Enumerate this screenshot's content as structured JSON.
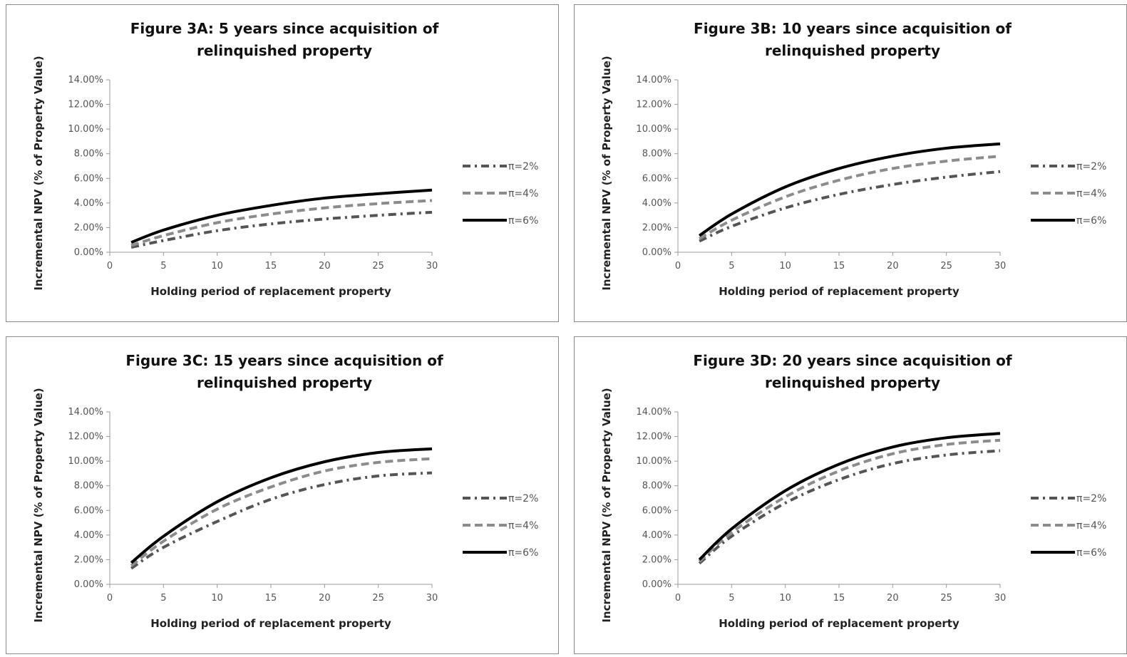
{
  "chart_data": [
    {
      "type": "line",
      "title_line1": "Figure 3A: 5 years since acquisition of",
      "title_line2": "relinquished property",
      "xlabel": "Holding period of replacement property",
      "ylabel": "Incremental NPV (% of Property Value)",
      "xlim": [
        0,
        30
      ],
      "ylim": [
        0,
        14
      ],
      "x_ticks": [
        "0",
        "5",
        "10",
        "15",
        "20",
        "25",
        "30"
      ],
      "y_ticks": [
        "0.00%",
        "2.00%",
        "4.00%",
        "6.00%",
        "8.00%",
        "10.00%",
        "12.00%",
        "14.00%"
      ],
      "legend_position": "right",
      "x": [
        2,
        5,
        10,
        15,
        20,
        25,
        30
      ],
      "series": [
        {
          "name": "π=2%",
          "style": "dashdot",
          "color": "#555555",
          "values": [
            0.4,
            0.95,
            1.75,
            2.3,
            2.7,
            3.0,
            3.25
          ]
        },
        {
          "name": "π=4%",
          "style": "dash",
          "color": "#8c8c8c",
          "values": [
            0.55,
            1.35,
            2.4,
            3.1,
            3.6,
            3.95,
            4.2
          ]
        },
        {
          "name": "π=6%",
          "style": "solid",
          "color": "#000000",
          "values": [
            0.8,
            1.8,
            3.0,
            3.8,
            4.4,
            4.75,
            5.05
          ]
        }
      ]
    },
    {
      "type": "line",
      "title_line1": "Figure 3B: 10 years since acquisition of",
      "title_line2": "relinquished property",
      "xlabel": "Holding period of replacement property",
      "ylabel": "Incremental NPV (% of Property Value)",
      "xlim": [
        0,
        30
      ],
      "ylim": [
        0,
        14
      ],
      "x_ticks": [
        "0",
        "5",
        "10",
        "15",
        "20",
        "25",
        "30"
      ],
      "y_ticks": [
        "0.00%",
        "2.00%",
        "4.00%",
        "6.00%",
        "8.00%",
        "10.00%",
        "12.00%",
        "14.00%"
      ],
      "legend_position": "right",
      "x": [
        2,
        5,
        10,
        15,
        20,
        25,
        30
      ],
      "series": [
        {
          "name": "π=2%",
          "style": "dashdot",
          "color": "#555555",
          "values": [
            0.9,
            2.1,
            3.6,
            4.7,
            5.5,
            6.1,
            6.55
          ]
        },
        {
          "name": "π=4%",
          "style": "dash",
          "color": "#8c8c8c",
          "values": [
            1.1,
            2.6,
            4.5,
            5.85,
            6.8,
            7.4,
            7.8
          ]
        },
        {
          "name": "π=6%",
          "style": "solid",
          "color": "#000000",
          "values": [
            1.35,
            3.1,
            5.3,
            6.8,
            7.8,
            8.45,
            8.8
          ]
        }
      ]
    },
    {
      "type": "line",
      "title_line1": "Figure 3C: 15 years since acquisition of",
      "title_line2": "relinquished property",
      "xlabel": "Holding period of replacement property",
      "ylabel": "Incremental NPV (% of Property Value)",
      "xlim": [
        0,
        30
      ],
      "ylim": [
        0,
        14
      ],
      "x_ticks": [
        "0",
        "5",
        "10",
        "15",
        "20",
        "25",
        "30"
      ],
      "y_ticks": [
        "0.00%",
        "2.00%",
        "4.00%",
        "6.00%",
        "8.00%",
        "10.00%",
        "12.00%",
        "14.00%"
      ],
      "legend_position": "right",
      "x": [
        2,
        5,
        10,
        15,
        20,
        25,
        30
      ],
      "series": [
        {
          "name": "π=2%",
          "style": "dashdot",
          "color": "#555555",
          "values": [
            1.3,
            3.0,
            5.1,
            6.9,
            8.1,
            8.8,
            9.05
          ]
        },
        {
          "name": "π=4%",
          "style": "dash",
          "color": "#8c8c8c",
          "values": [
            1.5,
            3.5,
            6.1,
            7.9,
            9.2,
            9.9,
            10.2
          ]
        },
        {
          "name": "π=6%",
          "style": "solid",
          "color": "#000000",
          "values": [
            1.75,
            3.9,
            6.7,
            8.65,
            9.95,
            10.7,
            11.0
          ]
        }
      ]
    },
    {
      "type": "line",
      "title_line1": "Figure 3D: 20 years since acquisition of",
      "title_line2": "relinquished property",
      "xlabel": "Holding period of replacement property",
      "ylabel": "Incremental NPV (% of Property Value)",
      "xlim": [
        0,
        30
      ],
      "ylim": [
        0,
        14
      ],
      "x_ticks": [
        "0",
        "5",
        "10",
        "15",
        "20",
        "25",
        "30"
      ],
      "y_ticks": [
        "0.00%",
        "2.00%",
        "4.00%",
        "6.00%",
        "8.00%",
        "10.00%",
        "12.00%",
        "14.00%"
      ],
      "legend_position": "right",
      "x": [
        2,
        5,
        10,
        15,
        20,
        25,
        30
      ],
      "series": [
        {
          "name": "π=2%",
          "style": "dashdot",
          "color": "#555555",
          "values": [
            1.7,
            3.9,
            6.6,
            8.5,
            9.8,
            10.5,
            10.85
          ]
        },
        {
          "name": "π=4%",
          "style": "dash",
          "color": "#8c8c8c",
          "values": [
            1.85,
            4.2,
            7.1,
            9.2,
            10.6,
            11.35,
            11.7
          ]
        },
        {
          "name": "π=6%",
          "style": "solid",
          "color": "#000000",
          "values": [
            2.0,
            4.5,
            7.6,
            9.75,
            11.15,
            11.9,
            12.25
          ]
        }
      ]
    }
  ]
}
